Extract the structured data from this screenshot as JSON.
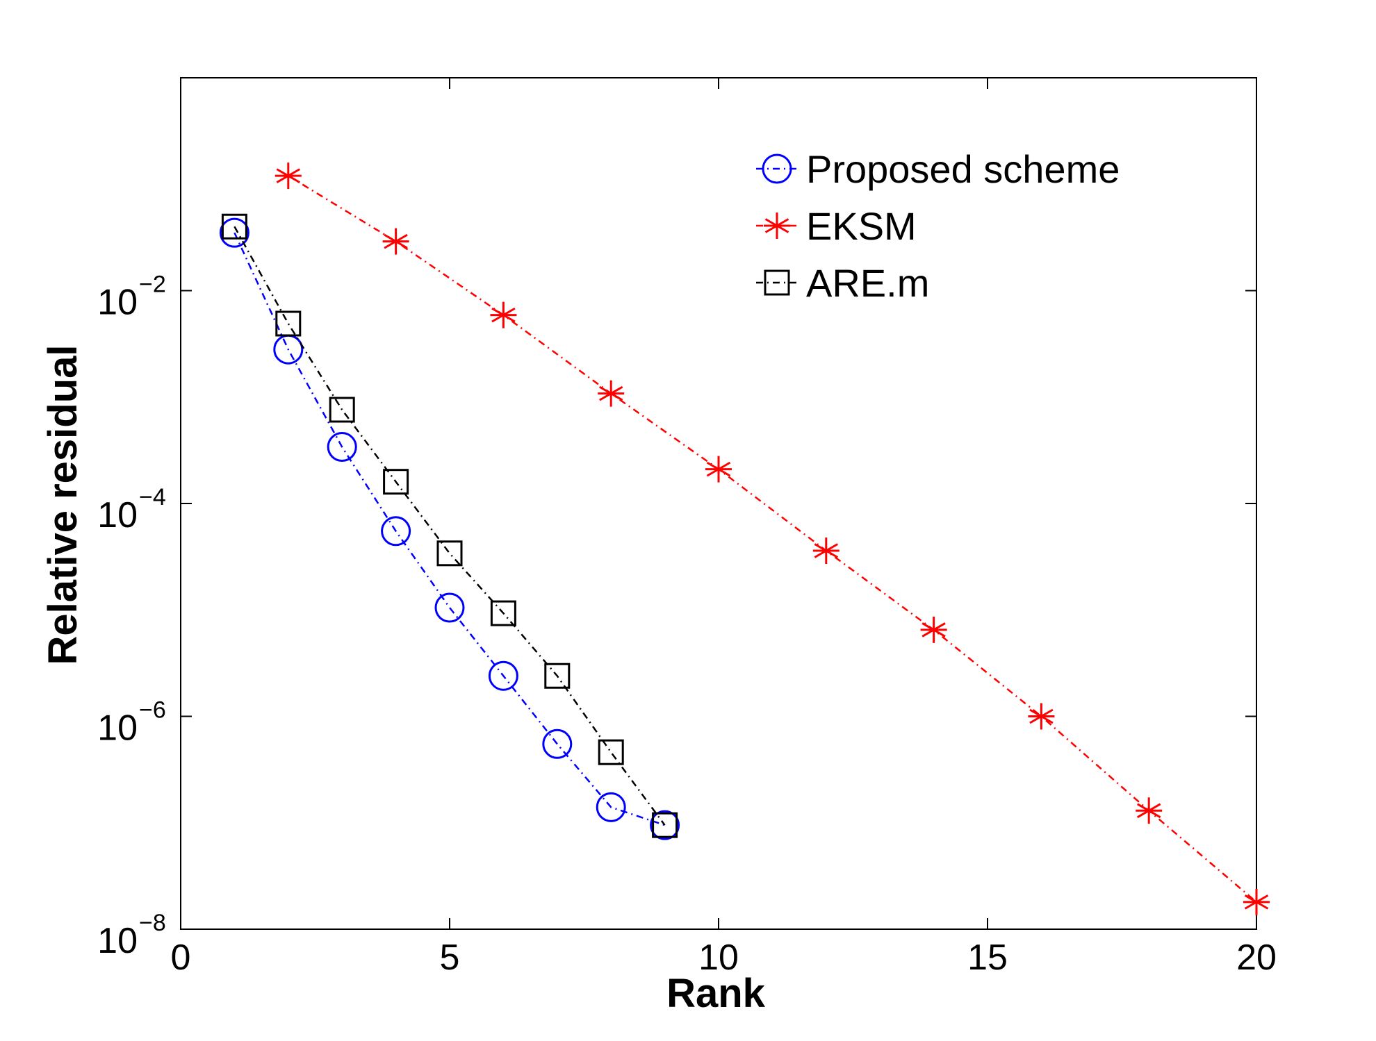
{
  "chart_data": {
    "type": "line",
    "title": "",
    "xlabel": "Rank",
    "ylabel": "Relative residual",
    "xlim": [
      0,
      20
    ],
    "ylim": [
      1e-08,
      1
    ],
    "yscale": "log",
    "grid": false,
    "legend_position": "top-right",
    "x_ticks": [
      0,
      5,
      10,
      15,
      20
    ],
    "x_tick_labels": [
      "0",
      "5",
      "10",
      "15",
      "20"
    ],
    "y_ticks": [
      {
        "value": 0.01,
        "base": "10",
        "exponent": "−2"
      },
      {
        "value": 0.0001,
        "base": "10",
        "exponent": "−4"
      },
      {
        "value": 1e-06,
        "base": "10",
        "exponent": "−6"
      },
      {
        "value": 1e-08,
        "base": "10",
        "exponent": "−8"
      }
    ],
    "series": [
      {
        "name": "Proposed scheme",
        "color": "#0000ff",
        "marker": "circle",
        "line_style": "dash-dot",
        "x": [
          1,
          2,
          3,
          4,
          5,
          6,
          7,
          8,
          9
        ],
        "y": [
          0.035,
          0.0028,
          0.00034,
          5.5e-05,
          1.05e-05,
          2.4e-06,
          5.5e-07,
          1.4e-07,
          9.5e-08
        ]
      },
      {
        "name": "EKSM",
        "color": "#ff0000",
        "marker": "asterisk",
        "line_style": "dash-dot",
        "x": [
          2,
          4,
          6,
          8,
          10,
          12,
          14,
          16,
          18,
          20
        ],
        "y": [
          0.12,
          0.029,
          0.0059,
          0.00108,
          0.00021,
          3.6e-05,
          6.5e-06,
          1e-06,
          1.3e-07,
          1.8e-08
        ]
      },
      {
        "name": "ARE.m",
        "color": "#000000",
        "marker": "square",
        "line_style": "dash-dot",
        "x": [
          1,
          2,
          3,
          4,
          5,
          6,
          7,
          8,
          9
        ],
        "y": [
          0.04,
          0.0049,
          0.00076,
          0.00016,
          3.4e-05,
          9.3e-06,
          2.4e-06,
          4.6e-07,
          9.5e-08
        ]
      }
    ]
  }
}
